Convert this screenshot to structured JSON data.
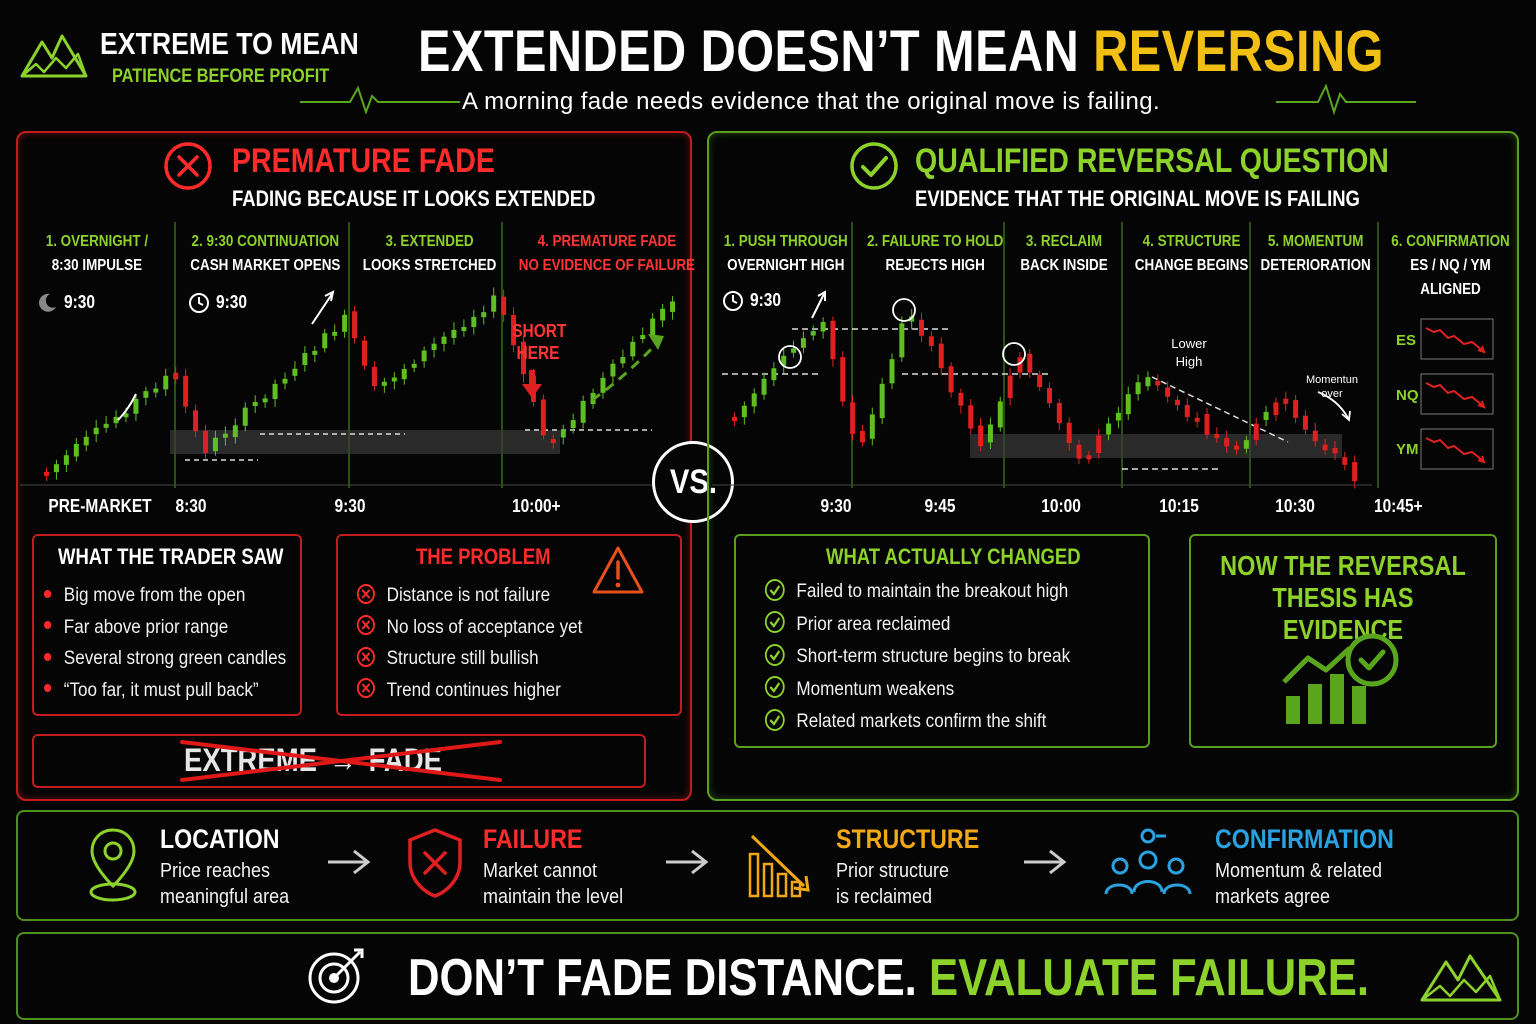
{
  "header": {
    "brand_name": "EXTREME TO MEAN",
    "brand_tagline": "PATIENCE BEFORE PROFIT",
    "title_part1": "EXTENDED DOESN’T MEAN ",
    "title_part2": "REVERSING",
    "subtitle": "A morning fade needs evidence that the original move is failing."
  },
  "vs_label": "VS.",
  "left": {
    "title": "PREMATURE FADE",
    "subtitle": "FADING BECAUSE IT LOOKS EXTENDED",
    "steps": [
      {
        "line1": "1. OVERNIGHT /",
        "line2": "8:30 IMPULSE"
      },
      {
        "line1": "2. 9:30 CONTINUATION",
        "line2": "CASH MARKET OPENS"
      },
      {
        "line1": "3. EXTENDED",
        "line2": "LOOKS STRETCHED"
      },
      {
        "line1": "4. PREMATURE FADE",
        "line2": "NO EVIDENCE OF FAILURE"
      }
    ],
    "time_tags": [
      "9:30",
      "9:30"
    ],
    "short_label_1": "SHORT",
    "short_label_2": "HERE",
    "axis": [
      "PRE-MARKET",
      "8:30",
      "9:30",
      "10:00+"
    ],
    "saw_box": {
      "title": "WHAT THE TRADER SAW",
      "items": [
        "Big move from the open",
        "Far above prior range",
        "Several strong green candles",
        "“Too far, it must pull back”"
      ]
    },
    "problem_box": {
      "title": "THE PROBLEM",
      "items": [
        "Distance is not failure",
        "No loss of acceptance yet",
        "Structure still bullish",
        "Trend continues higher"
      ]
    },
    "crossed_1": "EXTREME",
    "crossed_2": "FADE"
  },
  "right": {
    "title": "QUALIFIED REVERSAL QUESTION",
    "subtitle": "EVIDENCE THAT THE ORIGINAL MOVE IS FAILING",
    "steps": [
      {
        "line1": "1. PUSH THROUGH",
        "line2": "OVERNIGHT HIGH",
        "line3": ""
      },
      {
        "line1": "2. FAILURE TO HOLD",
        "line2": "REJECTS HIGH",
        "line3": ""
      },
      {
        "line1": "3. RECLAIM",
        "line2": "BACK INSIDE",
        "line3": ""
      },
      {
        "line1": "4. STRUCTURE",
        "line2": "CHANGE BEGINS",
        "line3": ""
      },
      {
        "line1": "5. MOMENTUM",
        "line2": "DETERIORATION",
        "line3": ""
      },
      {
        "line1": "6. CONFIRMATION",
        "line2": "ES / NQ / YM",
        "line3": "ALIGNED"
      }
    ],
    "time_tag": "9:30",
    "annot_lower_1": "Lower",
    "annot_lower_2": "High",
    "annot_momentum_1": "Momentun",
    "annot_momentum_2": "over",
    "markets": [
      "ES",
      "NQ",
      "YM"
    ],
    "axis": [
      "9:30",
      "9:45",
      "10:00",
      "10:15",
      "10:30",
      "10:45+"
    ],
    "changed_box": {
      "title": "WHAT ACTUALLY CHANGED",
      "items": [
        "Failed to maintain the breakout high",
        "Prior area reclaimed",
        "Short-term structure begins to break",
        "Momentum weakens",
        "Related markets confirm the shift"
      ]
    },
    "evidence_box": {
      "line1": "NOW THE REVERSAL",
      "line2": "THESIS HAS EVIDENCE"
    }
  },
  "flow": [
    {
      "title": "LOCATION",
      "desc1": "Price reaches",
      "desc2": "meaningful area",
      "color": "#ffffff",
      "icon": "location-pin-icon"
    },
    {
      "title": "FAILURE",
      "desc1": "Market cannot",
      "desc2": "maintain the level",
      "color": "#ff2b2b",
      "icon": "shield-x-icon"
    },
    {
      "title": "STRUCTURE",
      "desc1": "Prior structure",
      "desc2": "is reclaimed",
      "color": "#f2a814",
      "icon": "falling-bars-icon"
    },
    {
      "title": "CONFIRMATION",
      "desc1": "Momentum & related",
      "desc2": "markets agree",
      "color": "#2aa2e0",
      "icon": "people-group-icon"
    }
  ],
  "footer": {
    "part1": "DON’T FADE DISTANCE. ",
    "part2": "EVALUATE FAILURE."
  },
  "colors": {
    "green": "#8cd22a",
    "red": "#ff2b2b",
    "yellow": "#f2c014",
    "blue": "#2aa2e0",
    "bg": "#050505"
  }
}
